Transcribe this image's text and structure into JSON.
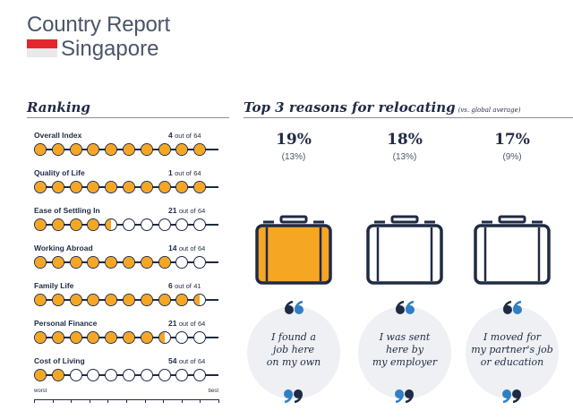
{
  "header": {
    "title": "Country Report",
    "country": "Singapore",
    "flag_colors": {
      "top": "#e4262d",
      "bottom": "#e9e9e9"
    }
  },
  "ranking": {
    "heading": "Ranking",
    "accent_color": "#f5a623",
    "of_label": "out of",
    "rows": [
      {
        "label": "Overall Index",
        "rank": "4",
        "total": "64",
        "filled_dots": 10
      },
      {
        "label": "Quality of Life",
        "rank": "1",
        "total": "64",
        "filled_dots": 10
      },
      {
        "label": "Ease of Settling In",
        "rank": "21",
        "total": "64",
        "filled_dots": 4.5
      },
      {
        "label": "Working Abroad",
        "rank": "14",
        "total": "64",
        "filled_dots": 8
      },
      {
        "label": "Family Life",
        "rank": "6",
        "total": "41",
        "filled_dots": 9.5
      },
      {
        "label": "Personal Finance",
        "rank": "21",
        "total": "64",
        "filled_dots": 7.5
      },
      {
        "label": "Cost of Living",
        "rank": "54",
        "total": "64",
        "filled_dots": 2
      }
    ],
    "scale": {
      "worst": "worst",
      "best": "best"
    }
  },
  "reasons": {
    "heading": "Top 3 reasons for relocating",
    "subheading": "(vs. global average)",
    "items": [
      {
        "percent": "19%",
        "global": "(13%)",
        "quote": "I found a\njob here\non my own",
        "highlighted": true
      },
      {
        "percent": "18%",
        "global": "(13%)",
        "quote": "I was sent\nhere by\nmy employer",
        "highlighted": false
      },
      {
        "percent": "17%",
        "global": "(9%)",
        "quote": "I moved for\nmy partner's job\nor education",
        "highlighted": false
      }
    ]
  }
}
